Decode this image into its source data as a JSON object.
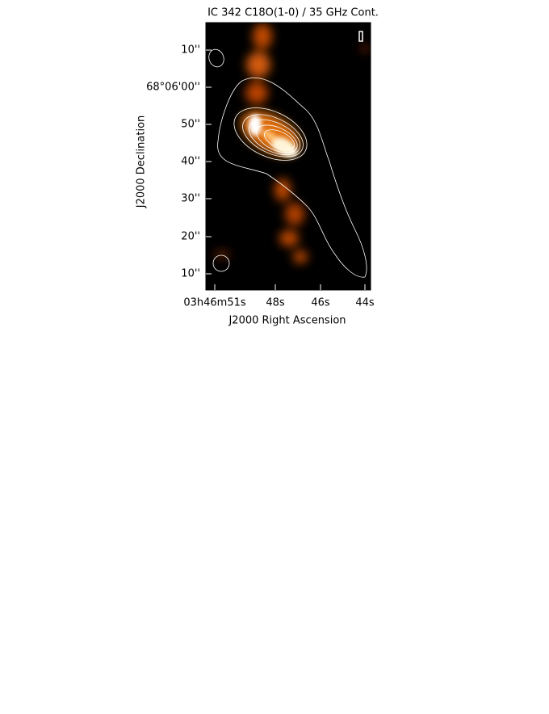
{
  "figure": {
    "title": "IC 342 C18O(1-0) / 35 GHz Cont.",
    "x_axis": {
      "label": "J2000 Right Ascension",
      "ticks": [
        "03h46m51s",
        "48s",
        "46s",
        "44s"
      ]
    },
    "y_axis": {
      "label": "J2000 Declination",
      "ticks": [
        "10''",
        "68°06'00''",
        "50''",
        "40''",
        "30''",
        "20''",
        "10''"
      ]
    }
  }
}
